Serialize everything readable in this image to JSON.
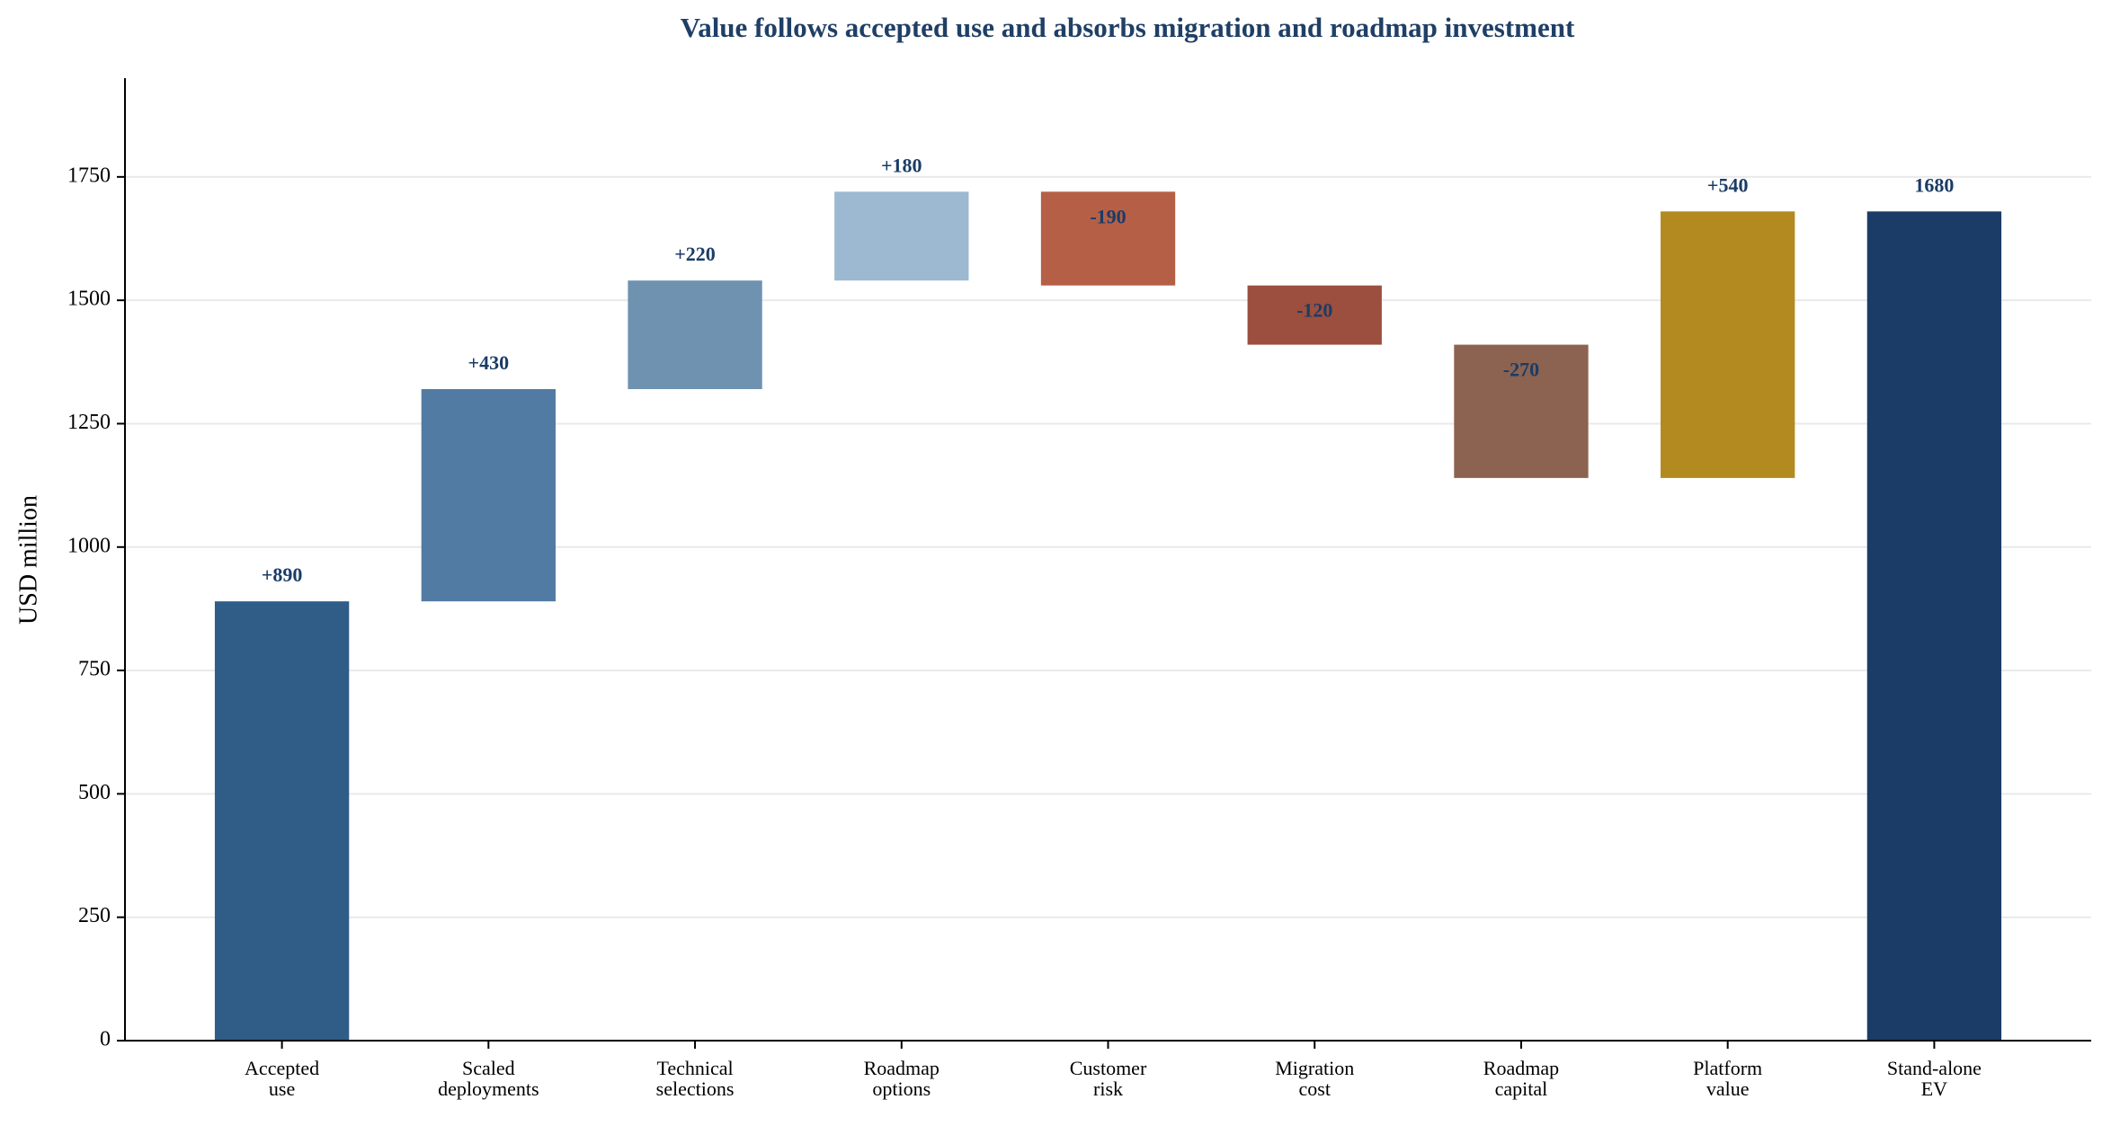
{
  "chart_data": {
    "type": "waterfall",
    "title": "Value follows accepted use and absorbs migration and roadmap investment",
    "y_label": "USD million",
    "categories": [
      "Accepted\nuse",
      "Scaled\ndeployments",
      "Technical\nselections",
      "Roadmap\noptions",
      "Customer\nrisk",
      "Migration\ncost",
      "Roadmap\ncapital",
      "Platform\nvalue",
      "Stand-alone\nEV"
    ],
    "values": [
      890,
      430,
      220,
      180,
      -190,
      -120,
      -270,
      540,
      1680
    ],
    "value_labels": [
      "+890",
      "+430",
      "+220",
      "+180",
      "-190",
      "-120",
      "-270",
      "+540",
      "1680"
    ],
    "colors": [
      "#2f5d87",
      "#527ba3",
      "#6f92b0",
      "#9db8d1",
      "#b55f47",
      "#9c4f3e",
      "#8c6350",
      "#b38a20",
      "#1a3c66"
    ],
    "ylim": [
      0,
      1950
    ],
    "yticks": [
      0,
      250,
      500,
      750,
      1000,
      1250,
      1500,
      1750
    ],
    "grid": true
  }
}
